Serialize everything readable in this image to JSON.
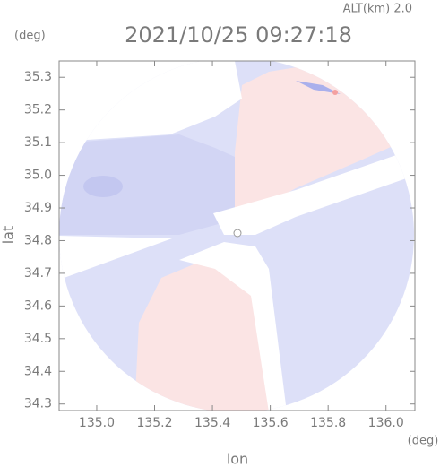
{
  "chart_data": {
    "type": "map",
    "title": "2021/10/25 09:27:18",
    "annotation": "ALT(km) 2.0",
    "x_label": "lon",
    "y_label": "lat",
    "x_unit": "(deg)",
    "y_unit": "(deg)",
    "xlim": [
      134.87,
      136.1
    ],
    "ylim": [
      34.28,
      35.35
    ],
    "xticks": [
      {
        "value": 135,
        "label": "135.0"
      },
      135.2,
      135.4,
      135.6,
      135.8,
      {
        "value": 136,
        "label": "136.0"
      }
    ],
    "yticks": [
      34.3,
      34.4,
      34.5,
      34.6,
      34.7,
      34.8,
      34.9,
      {
        "value": 35,
        "label": "35.0"
      },
      35.1,
      35.2,
      35.3
    ]
  }
}
